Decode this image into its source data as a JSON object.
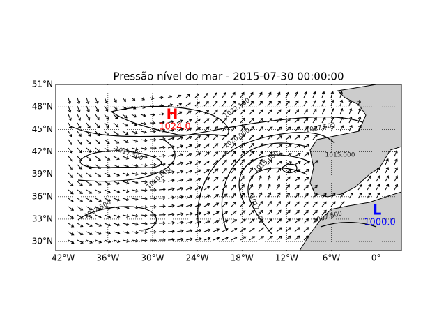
{
  "title": "Pressão nível do mar - 2015-07-30 00:00:00",
  "map": {
    "xlim": [
      -43,
      3.4
    ],
    "ylim": [
      28.8,
      51
    ],
    "xticks": [
      {
        "value": -42,
        "label": "42°W"
      },
      {
        "value": -36,
        "label": "36°W"
      },
      {
        "value": -30,
        "label": "30°W"
      },
      {
        "value": -24,
        "label": "24°W"
      },
      {
        "value": -18,
        "label": "18°W"
      },
      {
        "value": -12,
        "label": "12°W"
      },
      {
        "value": -6,
        "label": "6°W"
      },
      {
        "value": 0,
        "label": "0°"
      }
    ],
    "yticks": [
      {
        "value": 30,
        "label": "30°N"
      },
      {
        "value": 33,
        "label": "33°N"
      },
      {
        "value": 36,
        "label": "36°N"
      },
      {
        "value": 39,
        "label": "39°N"
      },
      {
        "value": 42,
        "label": "42°N"
      },
      {
        "value": 45,
        "label": "45°N"
      },
      {
        "value": 48,
        "label": "48°N"
      },
      {
        "value": 51,
        "label": "51°N"
      }
    ],
    "grid": true,
    "pressure_centers": [
      {
        "symbol": "H",
        "label": "1024.0",
        "color": "#ff0000"
      },
      {
        "symbol": "L",
        "label": "1000.0",
        "color": "#0000ff"
      }
    ],
    "contour_labels": [
      "1022.500",
      "1020.000",
      "1017.500",
      "1015.000",
      "1017.500",
      "1020.000",
      "1022.500",
      "1017.500",
      "1015.000",
      "1020.000",
      "1007.500"
    ]
  }
}
